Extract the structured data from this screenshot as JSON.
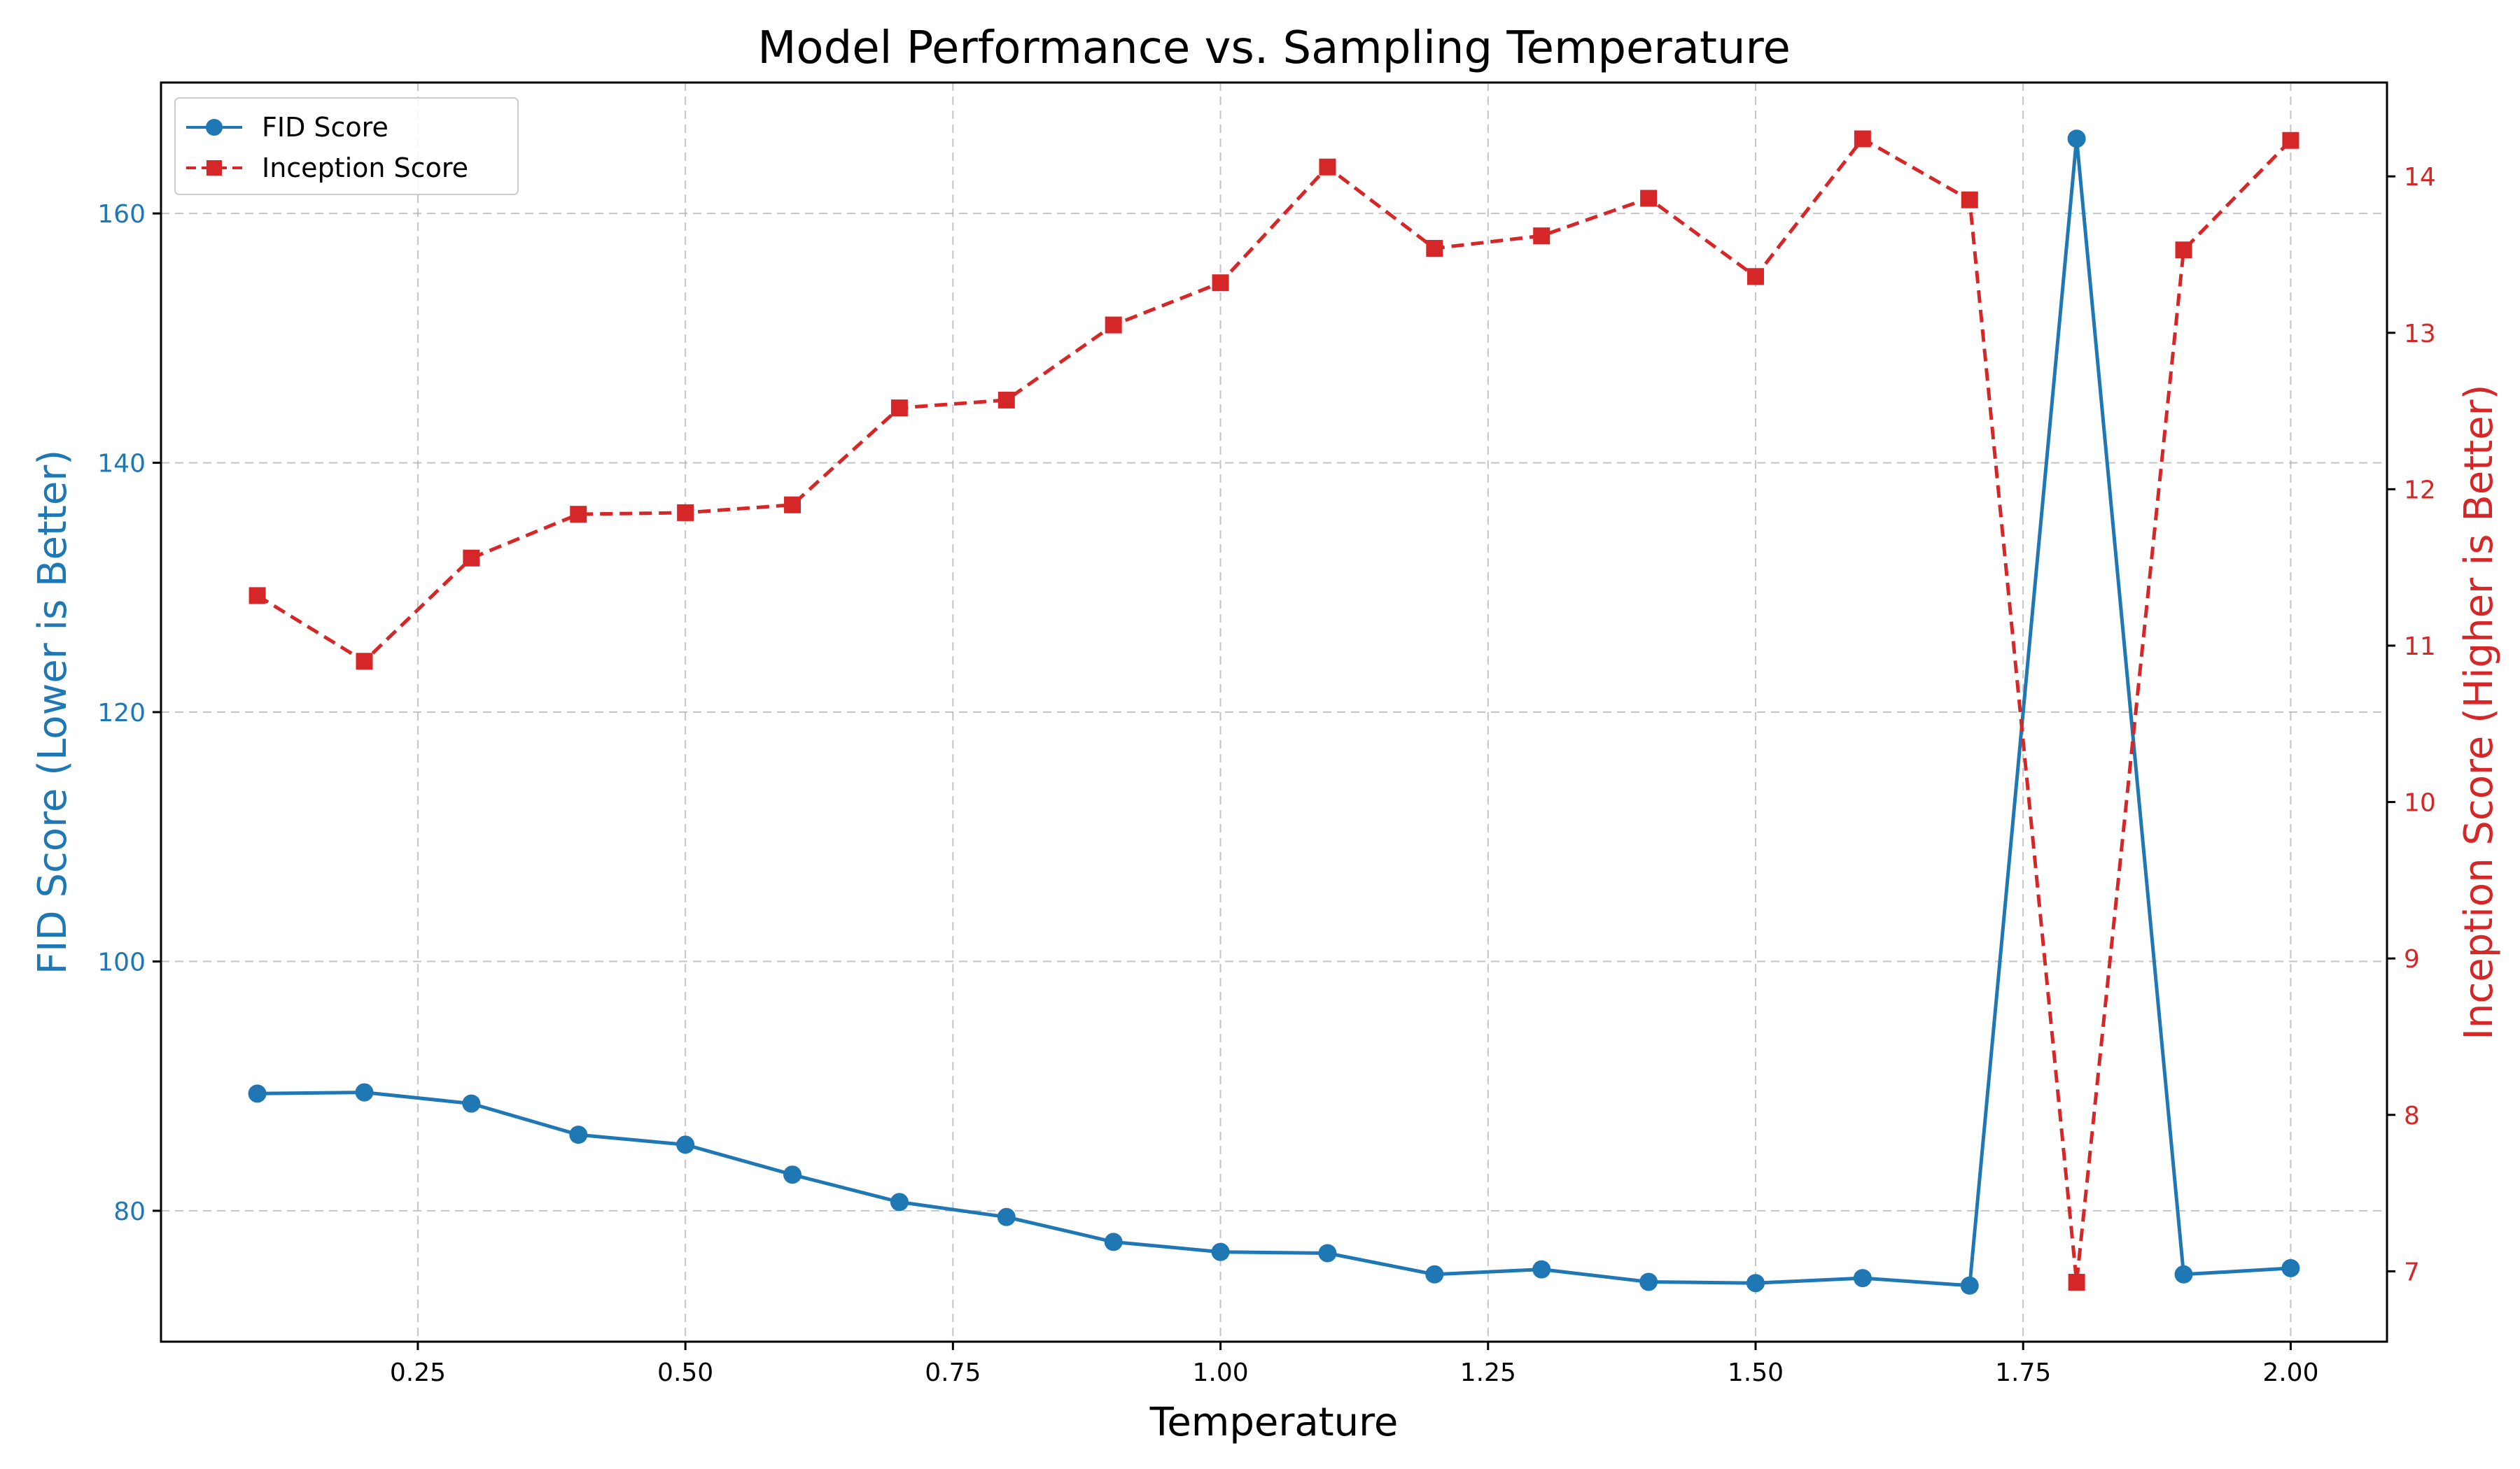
{
  "chart_data": {
    "type": "line",
    "title": "Model Performance vs. Sampling Temperature",
    "xlabel": "Temperature",
    "ylabel_left": "FID Score (Lower is Better)",
    "ylabel_right": "Inception Score (Higher is Better)",
    "xlim": [
      0.01,
      2.09
    ],
    "ylim_left": [
      69.5,
      170.5
    ],
    "ylim_right": [
      6.55,
      14.6
    ],
    "x_ticks": [
      0.25,
      0.5,
      0.75,
      1.0,
      1.25,
      1.5,
      1.75,
      2.0
    ],
    "x_tick_labels": [
      "0.25",
      "0.50",
      "0.75",
      "1.00",
      "1.25",
      "1.50",
      "1.75",
      "2.00"
    ],
    "y_ticks_left": [
      80,
      100,
      120,
      140,
      160
    ],
    "y_tick_labels_left": [
      "80",
      "100",
      "120",
      "140",
      "160"
    ],
    "y_ticks_right": [
      7,
      8,
      9,
      10,
      11,
      12,
      13,
      14
    ],
    "y_tick_labels_right": [
      "7",
      "8",
      "9",
      "10",
      "11",
      "12",
      "13",
      "14"
    ],
    "grid": true,
    "legend_position": "top-left",
    "x": [
      0.1,
      0.2,
      0.3,
      0.4,
      0.5,
      0.6,
      0.7,
      0.8,
      0.9,
      1.0,
      1.1,
      1.2,
      1.3,
      1.4,
      1.5,
      1.6,
      1.7,
      1.8,
      1.9,
      2.0
    ],
    "series": [
      {
        "name": "FID Score",
        "axis": "left",
        "color": "#1f77b4",
        "line_style": "solid",
        "marker": "circle",
        "values": [
          89.4,
          89.5,
          88.6,
          86.1,
          85.3,
          82.9,
          80.7,
          79.5,
          77.5,
          76.7,
          76.6,
          74.9,
          75.3,
          74.3,
          74.2,
          74.6,
          74.0,
          166.0,
          74.9,
          75.4
        ]
      },
      {
        "name": "Inception Score",
        "axis": "right",
        "color": "#d62728",
        "line_style": "dashed",
        "marker": "square",
        "values": [
          11.32,
          10.9,
          11.56,
          11.84,
          11.85,
          11.9,
          12.52,
          12.57,
          13.05,
          13.32,
          14.06,
          13.54,
          13.62,
          13.86,
          13.36,
          14.24,
          13.85,
          6.93,
          13.53,
          14.23
        ]
      }
    ]
  }
}
